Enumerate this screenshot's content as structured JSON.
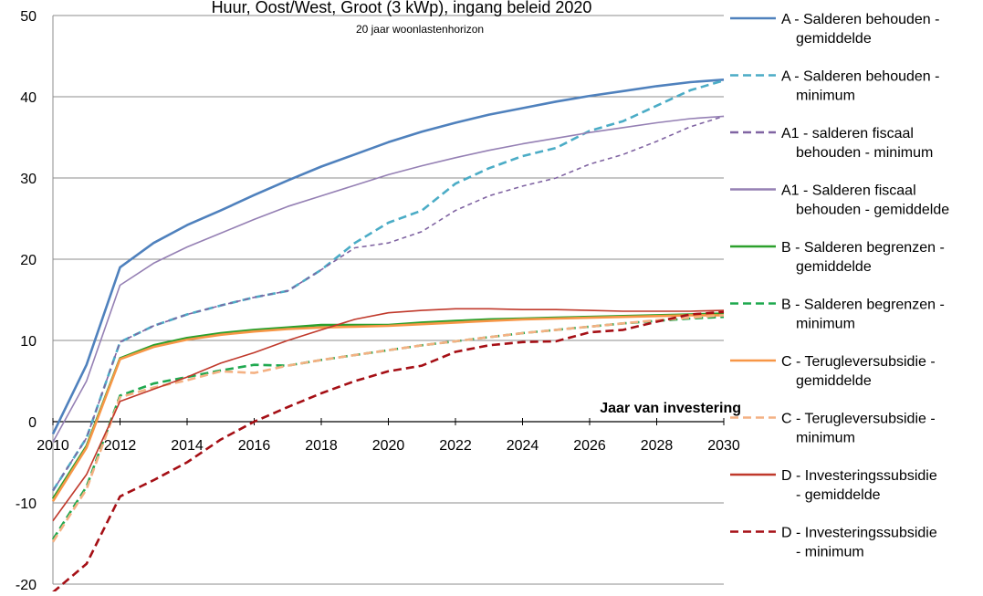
{
  "chart_data": {
    "type": "line",
    "title": "Huur, Oost/West, Groot (3 kWp), ingang beleid 2020",
    "subtitle": "20 jaar woonlastenhorizon",
    "xlabel": "Jaar van investering",
    "ylabel": "",
    "xlim": [
      2010,
      2030
    ],
    "ylim": [
      -20,
      50
    ],
    "x_ticks": [
      2010,
      2012,
      2014,
      2016,
      2018,
      2020,
      2022,
      2024,
      2026,
      2028,
      2030
    ],
    "y_ticks": [
      -20,
      -10,
      0,
      10,
      20,
      30,
      40,
      50
    ],
    "grid": "horizontal",
    "legend_position": "right",
    "x": [
      2010,
      2011,
      2012,
      2013,
      2014,
      2015,
      2016,
      2017,
      2018,
      2019,
      2020,
      2021,
      2022,
      2023,
      2024,
      2025,
      2026,
      2027,
      2028,
      2029,
      2030
    ],
    "series": [
      {
        "name": "A - Salderen behouden - gemiddelde",
        "color": "#4F81BD",
        "dash": "solid",
        "values": [
          -1.5,
          7,
          19,
          22,
          24.2,
          26,
          27.9,
          29.7,
          31.4,
          32.9,
          34.4,
          35.7,
          36.8,
          37.8,
          38.6,
          39.4,
          40.1,
          40.7,
          41.3,
          41.8,
          42.1
        ]
      },
      {
        "name": "A - Salderen behouden - minimum",
        "color": "#4BACC6",
        "dash": "dashed",
        "values": [
          -8.5,
          -2,
          9.8,
          11.8,
          13.2,
          14.3,
          15.3,
          16.1,
          18.7,
          22,
          24.5,
          26,
          29.3,
          31.2,
          32.7,
          33.7,
          35.8,
          37,
          38.9,
          40.8,
          42
        ]
      },
      {
        "name": "A1 - salderen fiscaal behouden - minimum",
        "color": "#8064A2",
        "dash": "dashed",
        "values": [
          -8.5,
          -2,
          9.8,
          11.8,
          13.2,
          14.3,
          15.3,
          16.1,
          18.7,
          21.4,
          22,
          23.4,
          26,
          27.8,
          29,
          30,
          31.7,
          32.9,
          34.5,
          36.3,
          37.6
        ]
      },
      {
        "name": "A1 - Salderen fiscaal behouden - gemiddelde",
        "color": "#9580B4",
        "dash": "solid",
        "values": [
          -2.5,
          5,
          16.8,
          19.5,
          21.5,
          23.2,
          24.9,
          26.5,
          27.8,
          29.1,
          30.4,
          31.5,
          32.5,
          33.4,
          34.2,
          34.9,
          35.6,
          36.2,
          36.8,
          37.3,
          37.6
        ]
      },
      {
        "name": "B - Salderen begrenzen - gemiddelde",
        "color": "#2CA02C",
        "dash": "solid",
        "values": [
          -9.5,
          -3,
          7.8,
          9.4,
          10.3,
          10.9,
          11.3,
          11.6,
          11.9,
          11.9,
          11.9,
          12.2,
          12.4,
          12.6,
          12.7,
          12.8,
          12.9,
          13.0,
          13.1,
          13.2,
          13.3
        ]
      },
      {
        "name": "B - Salderen begrenzen - minimum",
        "color": "#1FA84F",
        "dash": "dashed",
        "values": [
          -14.5,
          -8,
          3.2,
          4.7,
          5.5,
          6.3,
          7.0,
          6.9,
          7.6,
          8.2,
          8.8,
          9.4,
          9.9,
          10.4,
          10.9,
          11.3,
          11.7,
          12.1,
          12.4,
          12.7,
          12.9
        ]
      },
      {
        "name": "C - Terugleversubsidie - gemiddelde",
        "color": "#F79646",
        "dash": "solid",
        "values": [
          -9.8,
          -3.2,
          7.7,
          9.2,
          10.1,
          10.7,
          11.1,
          11.4,
          11.6,
          11.7,
          11.8,
          12.0,
          12.2,
          12.4,
          12.6,
          12.7,
          12.8,
          12.9,
          13.0,
          13.1,
          13.1
        ]
      },
      {
        "name": "C - Terugleversubsidie - minimum",
        "color": "#F4B183",
        "dash": "dashed",
        "values": [
          -14.8,
          -8.3,
          3.0,
          4.2,
          5.1,
          6.2,
          6.0,
          6.9,
          7.6,
          8.2,
          8.8,
          9.4,
          9.9,
          10.4,
          10.9,
          11.3,
          11.7,
          12.1,
          12.5,
          12.8,
          13.1
        ]
      },
      {
        "name": "D - Investeringssubsidie - gemiddelde",
        "color": "#C0392B",
        "dash": "solid",
        "values": [
          -12.2,
          -6.5,
          2.5,
          4.0,
          5.5,
          7.2,
          8.5,
          10.0,
          11.3,
          12.6,
          13.4,
          13.7,
          13.9,
          13.9,
          13.8,
          13.8,
          13.7,
          13.6,
          13.6,
          13.6,
          13.7
        ]
      },
      {
        "name": "D - Investeringssubsidie - minimum",
        "color": "#A50F15",
        "dash": "dashed",
        "values": [
          -21,
          -17.5,
          -9.2,
          -7.2,
          -5.0,
          -2.2,
          0.0,
          1.8,
          3.5,
          5.0,
          6.2,
          6.9,
          8.6,
          9.4,
          9.8,
          9.9,
          11.0,
          11.3,
          12.3,
          13.2,
          13.5
        ]
      }
    ]
  }
}
